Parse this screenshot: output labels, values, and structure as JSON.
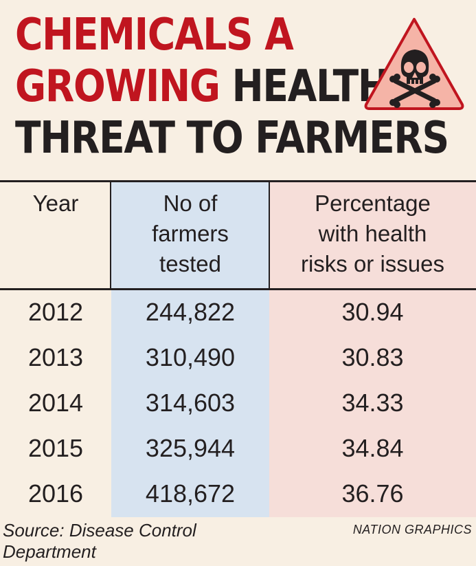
{
  "title": {
    "line1": "CHEMICALS A",
    "line2_red": "GROWING",
    "line2_dark": "HEALTH",
    "line3": "THREAT TO FARMERS"
  },
  "colors": {
    "title_red": "#c0151f",
    "title_dark": "#231f20",
    "sign_fill": "#f5b4a7",
    "sign_border": "#c0151f",
    "year_col": "#f8efe3",
    "farmers_col": "#d7e3f0",
    "pct_col": "#f6ded9"
  },
  "icons": [
    "skull-crossbones-warning-icon"
  ],
  "chart_data": {
    "type": "table",
    "columns": [
      "Year",
      "No of farmers tested",
      "Percentage with health risks or issues"
    ],
    "header_lines": [
      [
        "Year"
      ],
      [
        "No of",
        "farmers",
        "tested"
      ],
      [
        "Percentage",
        "with health",
        "risks or issues"
      ]
    ],
    "rows": [
      {
        "year": "2012",
        "farmers": "244,822",
        "pct": "30.94"
      },
      {
        "year": "2013",
        "farmers": "310,490",
        "pct": "30.83"
      },
      {
        "year": "2014",
        "farmers": "314,603",
        "pct": "34.33"
      },
      {
        "year": "2015",
        "farmers": "325,944",
        "pct": "34.84"
      },
      {
        "year": "2016",
        "farmers": "418,672",
        "pct": "36.76"
      }
    ]
  },
  "footer": {
    "source_line1": "Source: Disease Control",
    "source_line2": "Department",
    "credit": "NATION GRAPHICS"
  }
}
